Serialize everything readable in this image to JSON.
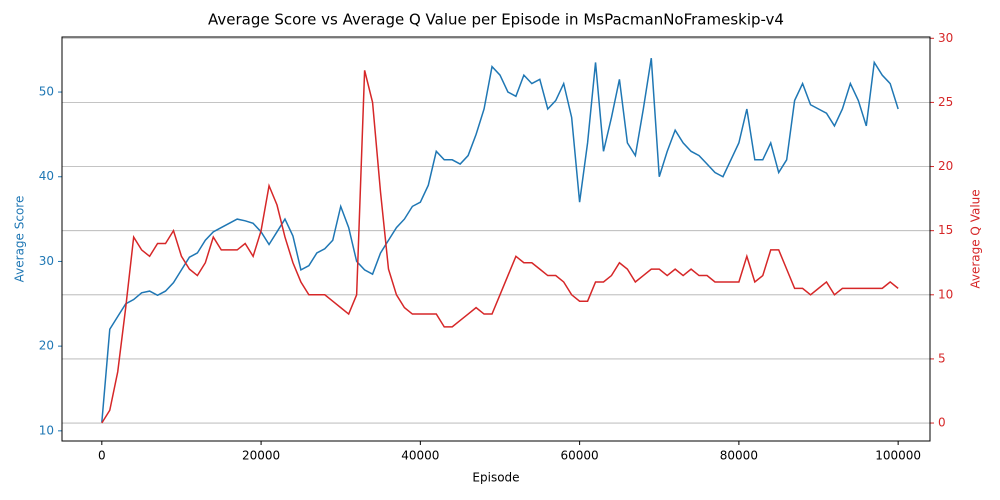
{
  "chart_data": {
    "type": "line",
    "title": "Average Score vs Average Q Value per Episode in MsPacmanNoFrameskip-v4",
    "xlabel": "Episode",
    "ylabel": "Average Score",
    "y2label": "Average Q Value",
    "x": [
      0,
      1000,
      2000,
      3000,
      4000,
      5000,
      6000,
      7000,
      8000,
      9000,
      10000,
      11000,
      12000,
      13000,
      14000,
      15000,
      16000,
      17000,
      18000,
      19000,
      20000,
      21000,
      22000,
      23000,
      24000,
      25000,
      26000,
      27000,
      28000,
      29000,
      30000,
      31000,
      32000,
      33000,
      34000,
      35000,
      36000,
      37000,
      38000,
      39000,
      40000,
      41000,
      42000,
      43000,
      44000,
      45000,
      46000,
      47000,
      48000,
      49000,
      50000,
      51000,
      52000,
      53000,
      54000,
      55000,
      56000,
      57000,
      58000,
      59000,
      60000,
      61000,
      62000,
      63000,
      64000,
      65000,
      66000,
      67000,
      68000,
      69000,
      70000,
      71000,
      72000,
      73000,
      74000,
      75000,
      76000,
      77000,
      78000,
      79000,
      80000,
      81000,
      82000,
      83000,
      84000,
      85000,
      86000,
      87000,
      88000,
      89000,
      90000,
      91000,
      92000,
      93000,
      94000,
      95000,
      96000,
      97000,
      98000,
      99000,
      100000
    ],
    "series": [
      {
        "name": "Average Score",
        "color": "#1f77b4",
        "axis": "y",
        "values": [
          11,
          22,
          23.5,
          25,
          25.5,
          26.3,
          26.5,
          26,
          26.5,
          27.5,
          29,
          30.5,
          31,
          32.5,
          33.5,
          34,
          34.5,
          35,
          34.8,
          34.5,
          33.5,
          32,
          33.5,
          35,
          33,
          29,
          29.5,
          31,
          31.5,
          32.5,
          36.5,
          34,
          30,
          29,
          28.5,
          31,
          32.5,
          34,
          35,
          36.5,
          37,
          39,
          43,
          42,
          42,
          41.5,
          42.5,
          45,
          48,
          53,
          52,
          50,
          49.5,
          52,
          51,
          51.5,
          48,
          49,
          51,
          47,
          37,
          44,
          53.5,
          43,
          47,
          51.5,
          44,
          42.5,
          48,
          54,
          40,
          43,
          45.5,
          44,
          43,
          42.5,
          41.5,
          40.5,
          40,
          42,
          44,
          48,
          42,
          42,
          44,
          40.5,
          42,
          49,
          51,
          48.5,
          48,
          47.5,
          46,
          48,
          51,
          49,
          46,
          53.5,
          52,
          51,
          48
        ]
      },
      {
        "name": "Average Q Value",
        "color": "#d62728",
        "axis": "y2",
        "values": [
          0,
          1,
          4,
          9,
          14.5,
          13.5,
          13,
          14,
          14,
          15,
          13,
          12,
          11.5,
          12.5,
          14.5,
          13.5,
          13.5,
          13.5,
          14,
          13,
          15,
          18.5,
          17,
          14.5,
          12.5,
          11,
          10,
          10,
          10,
          9.5,
          9,
          8.5,
          10,
          27.5,
          25,
          18,
          12,
          10,
          9,
          8.5,
          8.5,
          8.5,
          8.5,
          7.5,
          7.5,
          8,
          8.5,
          9,
          8.5,
          8.5,
          10,
          11.5,
          13,
          12.5,
          12.5,
          12,
          11.5,
          11.5,
          11,
          10,
          9.5,
          9.5,
          11,
          11,
          11.5,
          12.5,
          12,
          11,
          11.5,
          12,
          12,
          11.5,
          12,
          11.5,
          12,
          11.5,
          11.5,
          11,
          11,
          11,
          11,
          13,
          11,
          11.5,
          13.5,
          13.5,
          12,
          10.5,
          10.5,
          10,
          10.5,
          11,
          10,
          10.5,
          10.5,
          10.5,
          10.5,
          10.5,
          10.5,
          11,
          10.5
        ]
      }
    ],
    "xlim": [
      -5000,
      104000
    ],
    "ylim": [
      8.8,
      56.5
    ],
    "y2lim": [
      -1.4,
      30.1
    ],
    "xticks": [
      0,
      20000,
      40000,
      60000,
      80000,
      100000
    ],
    "yticks": [
      10,
      20,
      30,
      40,
      50
    ],
    "y2ticks": [
      0,
      5,
      10,
      15,
      20,
      25,
      30
    ],
    "grid": "y2"
  }
}
